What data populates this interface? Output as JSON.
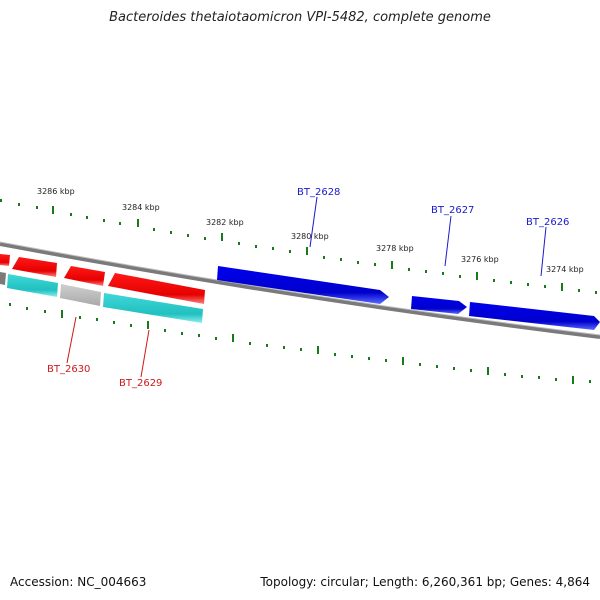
{
  "title": "Bacteroides thetaiotaomicron VPI-5482, complete genome",
  "footer": {
    "accession": "Accession: NC_004663",
    "topology": "Topology: circular; Length: 6,260,361 bp; Genes: 4,864"
  },
  "scale_labels": [
    "3286 kbp",
    "3284 kbp",
    "3282 kbp",
    "3280 kbp",
    "3278 kbp",
    "3276 kbp",
    "3274 kbp"
  ],
  "gene_labels": {
    "top": [
      "BT_2628",
      "BT_2627",
      "BT_2626"
    ],
    "bottom": [
      "BT_2630",
      "BT_2629"
    ]
  },
  "colors": {
    "forward_gene": "#0000dd",
    "reverse_gene": "#ee0000",
    "cds_track": "#22c7c7",
    "cds_gray": "#bbbbbb",
    "backbone": "#888888",
    "tick": "#1a7a1a",
    "top_label": "#1a1acc",
    "bottom_label": "#cc1a1a"
  }
}
